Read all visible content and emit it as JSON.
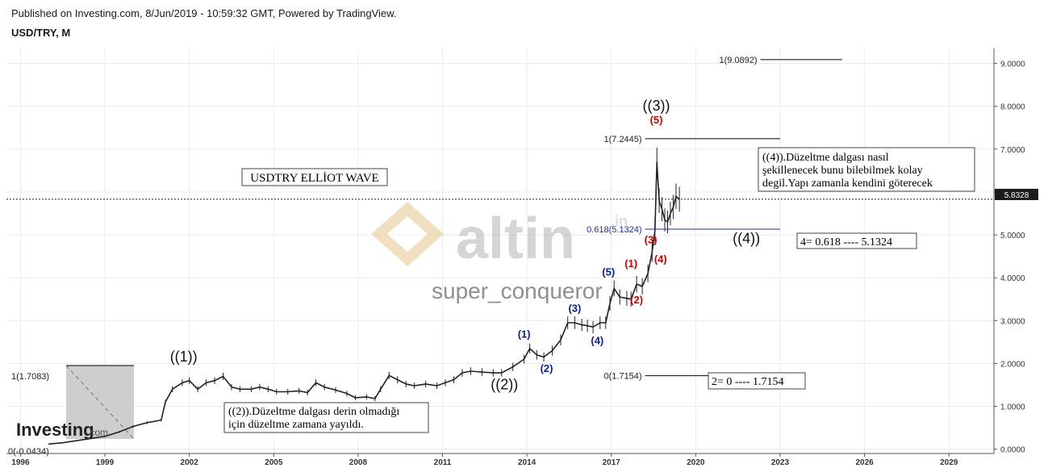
{
  "header": {
    "publish_line": "Published on Investing.com, 8/Jun/2019 - 10:59:32 GMT, Powered by TradingView.",
    "symbol": "USD/TRY, M"
  },
  "chart_data": {
    "type": "line",
    "title": "USDTRY  ELLİOT WAVE",
    "symbol": "USD/TRY",
    "interval": "M",
    "xlim": [
      1995.5,
      2030.6
    ],
    "ylim": [
      -0.1,
      9.35
    ],
    "x_ticks": [
      1996,
      1999,
      2002,
      2005,
      2008,
      2011,
      2014,
      2017,
      2020,
      2023,
      2026,
      2029
    ],
    "y_ticks": [
      "0.0000",
      "1.0000",
      "2.0000",
      "3.0000",
      "4.0000",
      "5.0000",
      "6.0000",
      "7.0000",
      "8.0000",
      "9.0000"
    ],
    "grid": true,
    "last_price": "5.8328",
    "series": [
      {
        "values": [
          [
            1997.0,
            0.12
          ],
          [
            1997.5,
            0.15
          ],
          [
            1998.0,
            0.2
          ],
          [
            1998.5,
            0.25
          ],
          [
            1999.0,
            0.3
          ],
          [
            1999.5,
            0.4
          ],
          [
            2000.0,
            0.53
          ],
          [
            2000.5,
            0.62
          ],
          [
            2001.0,
            0.68
          ],
          [
            2001.15,
            1.1
          ],
          [
            2001.4,
            1.4
          ],
          [
            2001.75,
            1.55
          ],
          [
            2002.0,
            1.6
          ],
          [
            2002.3,
            1.4
          ],
          [
            2002.6,
            1.55
          ],
          [
            2002.9,
            1.6
          ],
          [
            2003.2,
            1.7
          ],
          [
            2003.5,
            1.45
          ],
          [
            2003.8,
            1.4
          ],
          [
            2004.2,
            1.4
          ],
          [
            2004.5,
            1.45
          ],
          [
            2004.8,
            1.4
          ],
          [
            2005.1,
            1.34
          ],
          [
            2005.5,
            1.34
          ],
          [
            2005.9,
            1.36
          ],
          [
            2006.2,
            1.32
          ],
          [
            2006.5,
            1.55
          ],
          [
            2006.8,
            1.45
          ],
          [
            2007.2,
            1.38
          ],
          [
            2007.6,
            1.3
          ],
          [
            2007.9,
            1.2
          ],
          [
            2008.3,
            1.22
          ],
          [
            2008.6,
            1.18
          ],
          [
            2008.8,
            1.4
          ],
          [
            2009.1,
            1.72
          ],
          [
            2009.4,
            1.62
          ],
          [
            2009.7,
            1.52
          ],
          [
            2010.0,
            1.48
          ],
          [
            2010.4,
            1.52
          ],
          [
            2010.8,
            1.48
          ],
          [
            2011.1,
            1.55
          ],
          [
            2011.4,
            1.62
          ],
          [
            2011.7,
            1.78
          ],
          [
            2012.0,
            1.82
          ],
          [
            2012.4,
            1.8
          ],
          [
            2012.8,
            1.78
          ],
          [
            2013.1,
            1.78
          ],
          [
            2013.5,
            1.92
          ],
          [
            2013.9,
            2.1
          ],
          [
            2014.1,
            2.35
          ],
          [
            2014.35,
            2.2
          ],
          [
            2014.6,
            2.15
          ],
          [
            2014.9,
            2.3
          ],
          [
            2015.2,
            2.55
          ],
          [
            2015.45,
            2.95
          ],
          [
            2015.7,
            2.95
          ],
          [
            2015.95,
            2.9
          ],
          [
            2016.15,
            2.88
          ],
          [
            2016.35,
            2.85
          ],
          [
            2016.6,
            2.95
          ],
          [
            2016.8,
            2.95
          ],
          [
            2016.95,
            3.4
          ],
          [
            2017.1,
            3.75
          ],
          [
            2017.3,
            3.55
          ],
          [
            2017.55,
            3.52
          ],
          [
            2017.7,
            3.5
          ],
          [
            2017.9,
            3.85
          ],
          [
            2018.1,
            3.8
          ],
          [
            2018.3,
            4.1
          ],
          [
            2018.45,
            4.6
          ],
          [
            2018.55,
            5.1
          ],
          [
            2018.62,
            6.7
          ],
          [
            2018.7,
            5.8
          ],
          [
            2018.8,
            5.6
          ],
          [
            2018.9,
            5.35
          ],
          [
            2019.0,
            5.3
          ],
          [
            2019.1,
            5.5
          ],
          [
            2019.2,
            5.65
          ],
          [
            2019.3,
            5.9
          ],
          [
            2019.42,
            5.83
          ]
        ]
      }
    ],
    "annotations": {
      "wave_main": [
        {
          "label": "((1))",
          "x": 2001.8,
          "y": 2.05
        },
        {
          "label": "((2))",
          "x": 2013.2,
          "y": 1.4
        },
        {
          "label": "((3))",
          "x": 2018.6,
          "y": 7.9
        },
        {
          "label": "((4))",
          "x": 2021.8,
          "y": 4.8
        }
      ],
      "wave_blue": [
        {
          "label": "(1)",
          "x": 2013.9,
          "y": 2.6
        },
        {
          "label": "(2)",
          "x": 2014.7,
          "y": 1.8
        },
        {
          "label": "(3)",
          "x": 2015.7,
          "y": 3.2
        },
        {
          "label": "(4)",
          "x": 2016.5,
          "y": 2.45
        },
        {
          "label": "(5)",
          "x": 2016.9,
          "y": 4.05
        }
      ],
      "wave_red": [
        {
          "label": "(1)",
          "x": 2017.7,
          "y": 4.25
        },
        {
          "label": "(2)",
          "x": 2017.9,
          "y": 3.4
        },
        {
          "label": "(3)",
          "x": 2018.4,
          "y": 4.8
        },
        {
          "label": "(4)",
          "x": 2018.75,
          "y": 4.35
        },
        {
          "label": "(5)",
          "x": 2018.6,
          "y": 7.6
        }
      ],
      "fib_lines": [
        {
          "label": "1(9.0892)",
          "y": 9.0892,
          "x1": 2022.3,
          "x2": 2025.2
        },
        {
          "label": "1(7.2445)",
          "y": 7.2445,
          "x1": 2018.2,
          "x2": 2023.0
        },
        {
          "label": "0.618(5.1324)",
          "y": 5.1324,
          "x1": 2018.2,
          "x2": 2023.0,
          "blue": true
        },
        {
          "label": "0(1.7154)",
          "y": 1.7154,
          "x1": 2018.2,
          "x2": 2023.0
        },
        {
          "label": "1(1.7083)",
          "y": 1.7083,
          "x1": 2002.0,
          "x2": 2002.0
        },
        {
          "label": "0(-0.0434)",
          "y": -0.0434,
          "x1": 2002.0,
          "x2": 2002.0
        }
      ],
      "notes": {
        "title": "USDTRY  ELLİOT WAVE",
        "wave4_note": [
          "((4)).Düzeltme dalgası nasıl",
          "şekillenecek bunu bilebilmek kolay",
          "degil.Yapı zamanla kendini göterecek"
        ],
        "wave2_note": [
          "((2)).Düzeltme dalgası derin olmadığı",
          "için düzeltme zamana yayıldı."
        ],
        "fib4": "4= 0.618  ----   5.1324",
        "fib2": "2= 0  ----   1.7154"
      }
    }
  },
  "watermark": {
    "brand": "altin",
    "brand_suffix": ".in",
    "author": "super_conqueror",
    "logo": "Investing",
    "logo_suffix": ".com"
  },
  "colors": {
    "blue_wave": "#0a1ea0",
    "red_wave": "#d40000",
    "fib_blue": "#1a2ad0"
  }
}
